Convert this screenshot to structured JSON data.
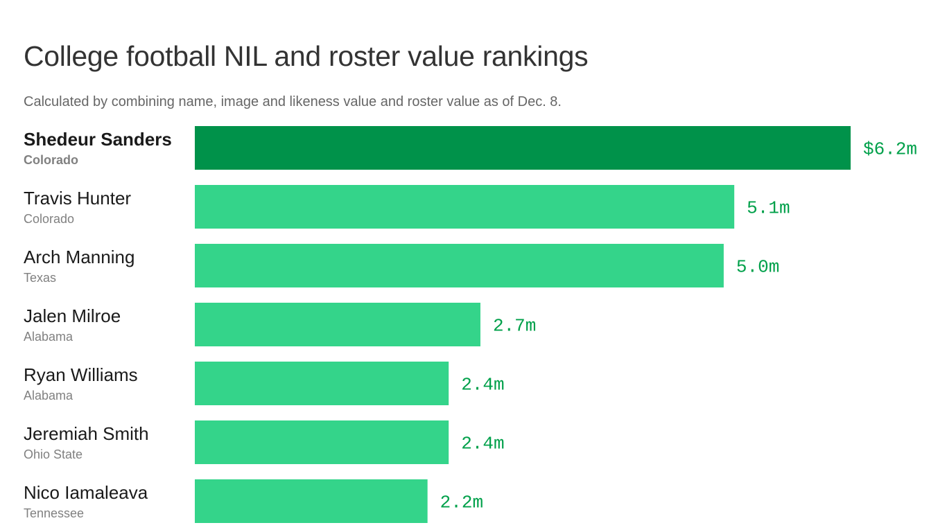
{
  "title": "College football NIL and roster value rankings",
  "subtitle": "Calculated by combining name, image and likeness value and roster value as of Dec. 8.",
  "colors": {
    "highlight_bar": "#00924a",
    "bar": "#34d48a",
    "value_text": "#00a04a"
  },
  "chart_data": {
    "type": "bar",
    "orientation": "horizontal",
    "unit": "millions of dollars",
    "categories": [
      "Shedeur Sanders",
      "Travis Hunter",
      "Arch Manning",
      "Jalen Milroe",
      "Ryan Williams",
      "Jeremiah Smith",
      "Nico Iamaleava"
    ],
    "teams": [
      "Colorado",
      "Colorado",
      "Texas",
      "Alabama",
      "Alabama",
      "Ohio State",
      "Tennessee"
    ],
    "values": [
      6.2,
      5.1,
      5.0,
      2.7,
      2.4,
      2.4,
      2.2
    ],
    "value_labels": [
      "$6.2m",
      "5.1m",
      "5.0m",
      "2.7m",
      "2.4m",
      "2.4m",
      "2.2m"
    ],
    "highlighted": [
      true,
      false,
      false,
      false,
      false,
      false,
      false
    ],
    "xlim": [
      0,
      6.2
    ],
    "grid": false,
    "legend": "none"
  }
}
